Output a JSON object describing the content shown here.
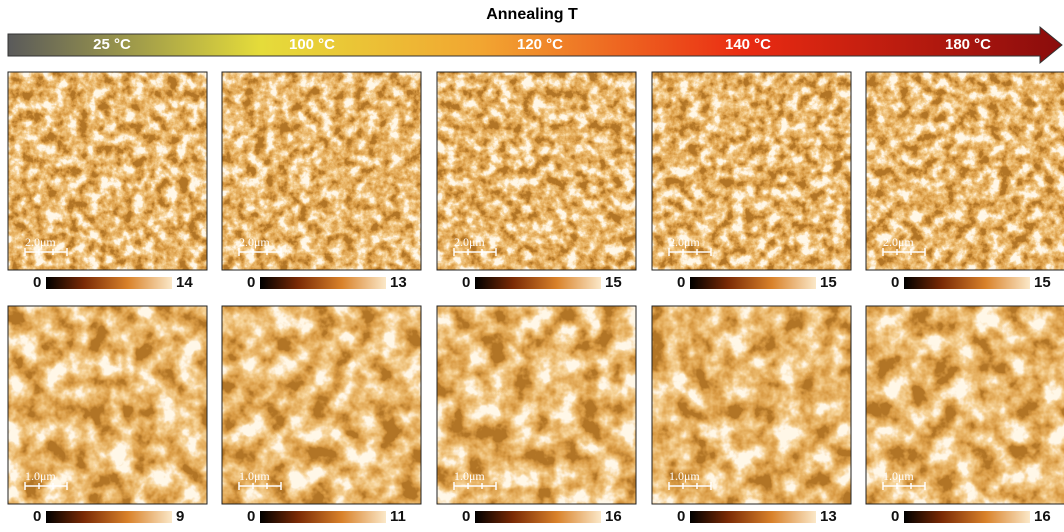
{
  "header": {
    "title": "Annealing T",
    "temperatures": [
      "25 °C",
      "100 °C",
      "120 °C",
      "140 °C",
      "180 °C"
    ]
  },
  "rows": [
    {
      "panels": [
        {
          "scale_bar": "2.0μm",
          "colorbar_min": 0,
          "colorbar_max": 14
        },
        {
          "scale_bar": "2.0μm",
          "colorbar_min": 0,
          "colorbar_max": 13
        },
        {
          "scale_bar": "2.0μm",
          "colorbar_min": 0,
          "colorbar_max": 15
        },
        {
          "scale_bar": "2.0μm",
          "colorbar_min": 0,
          "colorbar_max": 15
        },
        {
          "scale_bar": "2.0μm",
          "colorbar_min": 0,
          "colorbar_max": 15
        }
      ]
    },
    {
      "panels": [
        {
          "scale_bar": "1.0μm",
          "colorbar_min": 0,
          "colorbar_max": 9
        },
        {
          "scale_bar": "1.0μm",
          "colorbar_min": 0,
          "colorbar_max": 11
        },
        {
          "scale_bar": "1.0μm",
          "colorbar_min": 0,
          "colorbar_max": 16
        },
        {
          "scale_bar": "1.0μm",
          "colorbar_min": 0,
          "colorbar_max": 13
        },
        {
          "scale_bar": "1.0μm",
          "colorbar_min": 0,
          "colorbar_max": 16
        }
      ]
    }
  ]
}
